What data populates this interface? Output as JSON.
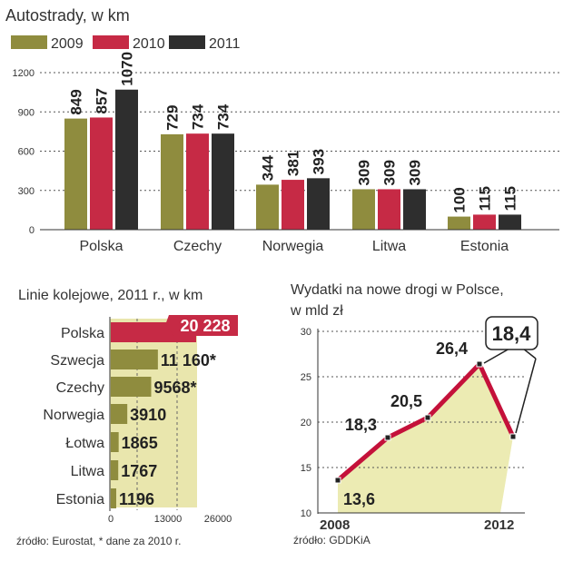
{
  "colors": {
    "y2009": "#8f8c3e",
    "y2010": "#c62a45",
    "y2011": "#2e2e2e",
    "rail_bar": "#8f8c3e",
    "rail_bar_highlight": "#c62a45",
    "rail_band": "#e9e6ad",
    "line": "#c4113a",
    "area": "#ecebb3",
    "grid": "#555555",
    "text": "#333333"
  },
  "chart_data": [
    {
      "id": "motorways",
      "type": "bar",
      "title": "Autostrady, w km",
      "legend": [
        "2009",
        "2010",
        "2011"
      ],
      "categories": [
        "Polska",
        "Czechy",
        "Norwegia",
        "Litwa",
        "Estonia"
      ],
      "series": [
        {
          "name": "2009",
          "values": [
            849,
            729,
            344,
            309,
            100
          ]
        },
        {
          "name": "2010",
          "values": [
            857,
            734,
            381,
            309,
            115
          ]
        },
        {
          "name": "2011",
          "values": [
            1070,
            734,
            393,
            309,
            115
          ]
        }
      ],
      "yticks": [
        0,
        300,
        600,
        900,
        1200
      ],
      "ylim": [
        0,
        1200
      ],
      "grid": true
    },
    {
      "id": "railways",
      "type": "bar",
      "orientation": "horizontal",
      "title": "Linie kolejowe, 2011 r., w km",
      "categories": [
        "Polska",
        "Szwecja",
        "Czechy",
        "Norwegia",
        "Łotwa",
        "Litwa",
        "Estonia"
      ],
      "values": [
        20228,
        11160,
        9568,
        3910,
        1865,
        1767,
        1196
      ],
      "value_labels": [
        "20 228",
        "11 160*",
        "9568*",
        "3910",
        "1865",
        "1767",
        "1196"
      ],
      "xticks": [
        "0",
        "13000",
        "26000"
      ],
      "xlim": [
        0,
        26000
      ],
      "source": "źródło: Eurostat, * dane za 2010 r."
    },
    {
      "id": "spending",
      "type": "area",
      "title": "Wydatki na nowe drogi  w Polsce,",
      "subtitle": "w mld zł",
      "x": [
        2008,
        2009,
        2010,
        2011,
        2012
      ],
      "values": [
        13.6,
        18.3,
        20.5,
        26.4,
        18.4
      ],
      "value_labels": [
        "13,6",
        "18,3",
        "20,5",
        "26,4",
        "18,4"
      ],
      "xlabels": [
        "2008",
        "2012"
      ],
      "yticks": [
        10,
        15,
        20,
        25,
        30
      ],
      "ylim": [
        10,
        30
      ],
      "grid": true,
      "source": "źródło: GDDKiA"
    }
  ]
}
